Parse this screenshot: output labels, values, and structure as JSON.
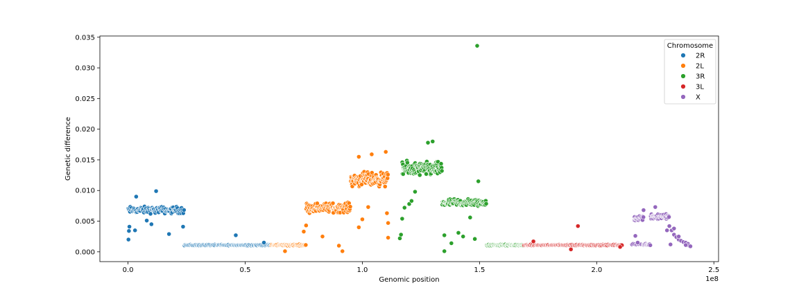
{
  "chart_data": {
    "type": "scatter",
    "xlabel": "Genomic position",
    "ylabel": "Genetic difference",
    "x_offset_label": "1e8",
    "xlim": [
      -0.12,
      2.52
    ],
    "ylim": [
      -0.0016,
      0.0352
    ],
    "x_ticks": [
      {
        "value": 0.0,
        "label": "0.0"
      },
      {
        "value": 0.5,
        "label": "0.5"
      },
      {
        "value": 1.0,
        "label": "1.0"
      },
      {
        "value": 1.5,
        "label": "1.5"
      },
      {
        "value": 2.0,
        "label": "2.0"
      },
      {
        "value": 2.5,
        "label": "2.5"
      }
    ],
    "y_ticks": [
      {
        "value": 0.0,
        "label": "0.000"
      },
      {
        "value": 0.005,
        "label": "0.005"
      },
      {
        "value": 0.01,
        "label": "0.010"
      },
      {
        "value": 0.015,
        "label": "0.015"
      },
      {
        "value": 0.02,
        "label": "0.020"
      },
      {
        "value": 0.025,
        "label": "0.025"
      },
      {
        "value": 0.03,
        "label": "0.030"
      },
      {
        "value": 0.035,
        "label": "0.035"
      }
    ],
    "grid": false,
    "legend": {
      "title": "Chromosome",
      "placement": "top-right"
    },
    "series": [
      {
        "name": "2R",
        "color": "#1f77b4",
        "segments": [
          {
            "x_start": 0.0,
            "x_end": 0.24,
            "y_mid": 0.0068,
            "spread": 0.0008,
            "count": 100
          },
          {
            "x_start": 0.24,
            "x_end": 0.61,
            "y_mid": 0.0011,
            "spread": 0.00012,
            "count": 130
          }
        ],
        "points": [
          {
            "x": 0.002,
            "y": 0.002
          },
          {
            "x": 0.004,
            "y": 0.0034
          },
          {
            "x": 0.006,
            "y": 0.0041
          },
          {
            "x": 0.035,
            "y": 0.009
          },
          {
            "x": 0.03,
            "y": 0.0035
          },
          {
            "x": 0.12,
            "y": 0.0099
          },
          {
            "x": 0.1,
            "y": 0.0045
          },
          {
            "x": 0.08,
            "y": 0.0051
          },
          {
            "x": 0.175,
            "y": 0.0029
          },
          {
            "x": 0.235,
            "y": 0.0041
          },
          {
            "x": 0.46,
            "y": 0.0027
          },
          {
            "x": 0.58,
            "y": 0.0015
          }
        ]
      },
      {
        "name": "2L",
        "color": "#ff7f0e",
        "segments": [
          {
            "x_start": 0.61,
            "x_end": 0.76,
            "y_mid": 0.0011,
            "spread": 0.00015,
            "count": 70
          },
          {
            "x_start": 0.76,
            "x_end": 0.95,
            "y_mid": 0.0072,
            "spread": 0.0011,
            "count": 110
          },
          {
            "x_start": 0.95,
            "x_end": 1.11,
            "y_mid": 0.0118,
            "spread": 0.0016,
            "count": 120
          }
        ],
        "points": [
          {
            "x": 0.75,
            "y": 0.0033
          },
          {
            "x": 0.76,
            "y": 0.0043
          },
          {
            "x": 0.83,
            "y": 0.0025
          },
          {
            "x": 0.9,
            "y": 0.001
          },
          {
            "x": 0.915,
            "y": 0.0001
          },
          {
            "x": 0.67,
            "y": 0.0001
          },
          {
            "x": 0.985,
            "y": 0.004
          },
          {
            "x": 1.0,
            "y": 0.0053
          },
          {
            "x": 1.025,
            "y": 0.0073
          },
          {
            "x": 1.105,
            "y": 0.0063
          },
          {
            "x": 1.11,
            "y": 0.0047
          },
          {
            "x": 1.11,
            "y": 0.0023
          },
          {
            "x": 0.985,
            "y": 0.0155
          },
          {
            "x": 1.04,
            "y": 0.0159
          },
          {
            "x": 1.1,
            "y": 0.0163
          }
        ]
      },
      {
        "name": "3R",
        "color": "#2ca02c",
        "segments": [
          {
            "x_start": 1.17,
            "x_end": 1.34,
            "y_mid": 0.0135,
            "spread": 0.0016,
            "count": 130
          },
          {
            "x_start": 1.34,
            "x_end": 1.53,
            "y_mid": 0.008,
            "spread": 0.0009,
            "count": 110
          },
          {
            "x_start": 1.53,
            "x_end": 1.69,
            "y_mid": 0.0011,
            "spread": 0.00015,
            "count": 90
          }
        ],
        "points": [
          {
            "x": 1.16,
            "y": 0.0022
          },
          {
            "x": 1.165,
            "y": 0.0028
          },
          {
            "x": 1.17,
            "y": 0.0054
          },
          {
            "x": 1.18,
            "y": 0.0072
          },
          {
            "x": 1.2,
            "y": 0.0078
          },
          {
            "x": 1.21,
            "y": 0.0083
          },
          {
            "x": 1.225,
            "y": 0.0098
          },
          {
            "x": 1.28,
            "y": 0.0178
          },
          {
            "x": 1.3,
            "y": 0.018
          },
          {
            "x": 1.35,
            "y": 0.0027
          },
          {
            "x": 1.35,
            "y": 0.0001
          },
          {
            "x": 1.38,
            "y": 0.0014
          },
          {
            "x": 1.41,
            "y": 0.0031
          },
          {
            "x": 1.43,
            "y": 0.0025
          },
          {
            "x": 1.46,
            "y": 0.0056
          },
          {
            "x": 1.48,
            "y": 0.0021
          },
          {
            "x": 1.495,
            "y": 0.0115
          },
          {
            "x": 1.49,
            "y": 0.0336
          }
        ]
      },
      {
        "name": "3L",
        "color": "#d62728",
        "segments": [
          {
            "x_start": 1.69,
            "x_end": 2.11,
            "y_mid": 0.0011,
            "spread": 0.00012,
            "count": 150
          }
        ],
        "points": [
          {
            "x": 1.73,
            "y": 0.0017
          },
          {
            "x": 1.92,
            "y": 0.0042
          },
          {
            "x": 1.89,
            "y": 0.0004
          },
          {
            "x": 2.1,
            "y": 0.0008
          }
        ]
      },
      {
        "name": "X",
        "color": "#9467bd",
        "segments": [
          {
            "x_start": 2.15,
            "x_end": 2.2,
            "y_mid": 0.0012,
            "spread": 0.00015,
            "count": 10
          },
          {
            "x_start": 2.16,
            "x_end": 2.2,
            "y_mid": 0.0055,
            "spread": 0.0006,
            "count": 25
          },
          {
            "x_start": 2.2,
            "x_end": 2.23,
            "y_mid": 0.0012,
            "spread": 0.0002,
            "count": 12
          },
          {
            "x_start": 2.23,
            "x_end": 2.31,
            "y_mid": 0.0058,
            "spread": 0.0008,
            "count": 50
          }
        ],
        "points": [
          {
            "x": 2.31,
            "y": 0.0042
          },
          {
            "x": 2.32,
            "y": 0.0035
          },
          {
            "x": 2.33,
            "y": 0.0028
          },
          {
            "x": 2.34,
            "y": 0.0024
          },
          {
            "x": 2.35,
            "y": 0.002
          },
          {
            "x": 2.36,
            "y": 0.0018
          },
          {
            "x": 2.37,
            "y": 0.0016
          },
          {
            "x": 2.38,
            "y": 0.0015
          },
          {
            "x": 2.39,
            "y": 0.0013
          },
          {
            "x": 2.395,
            "y": 0.001
          },
          {
            "x": 2.4,
            "y": 0.0009
          },
          {
            "x": 2.315,
            "y": 0.0012
          },
          {
            "x": 2.33,
            "y": 0.0038
          },
          {
            "x": 2.35,
            "y": 0.0025
          },
          {
            "x": 2.38,
            "y": 0.0011
          },
          {
            "x": 2.165,
            "y": 0.0026
          },
          {
            "x": 2.175,
            "y": 0.0015
          },
          {
            "x": 2.2,
            "y": 0.0068
          },
          {
            "x": 2.25,
            "y": 0.0073
          },
          {
            "x": 2.3,
            "y": 0.0035
          }
        ]
      }
    ]
  }
}
